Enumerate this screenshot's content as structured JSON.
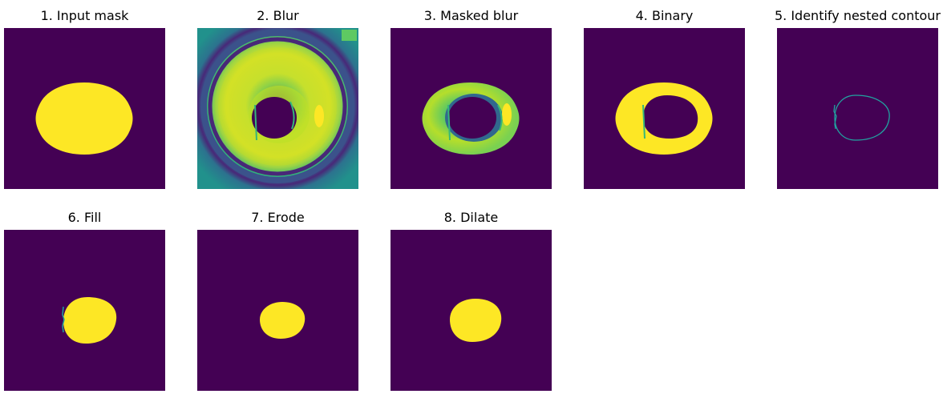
{
  "colors": {
    "background": "#440154",
    "foreground": "#fde725",
    "contour": "#21a3a0"
  },
  "panels": [
    {
      "title": "1. Input mask"
    },
    {
      "title": "2. Blur"
    },
    {
      "title": "3. Masked blur"
    },
    {
      "title": "4. Binary"
    },
    {
      "title": "5. Identify nested contour"
    },
    {
      "title": "6. Fill"
    },
    {
      "title": "7. Erode"
    },
    {
      "title": "8. Dilate"
    }
  ]
}
